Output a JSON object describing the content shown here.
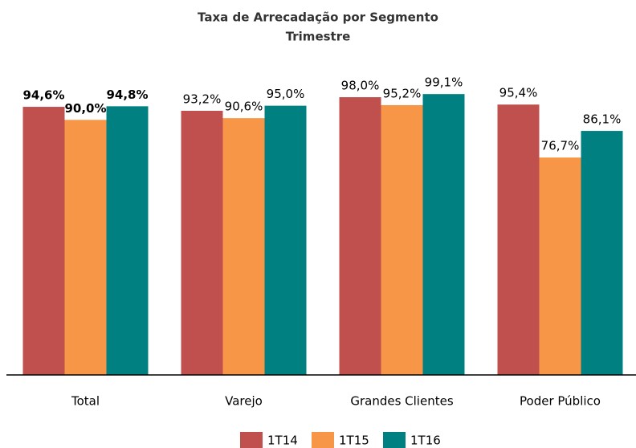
{
  "chart_data": {
    "type": "bar",
    "title": "Taxa de Arrecadação por Segmento",
    "subtitle": "Trimestre",
    "categories": [
      "Total",
      "Varejo",
      "Grandes Clientes",
      "Poder Público"
    ],
    "series": [
      {
        "name": "1T14",
        "color": "#c0504d",
        "values": [
          94.6,
          93.2,
          98.0,
          95.4
        ],
        "value_labels": [
          "94,6%",
          "93,2%",
          "98,0%",
          "95,4%"
        ]
      },
      {
        "name": "1T15",
        "color": "#f79646",
        "values": [
          90.0,
          90.6,
          95.2,
          76.7
        ],
        "value_labels": [
          "90,0%",
          "90,6%",
          "95,2%",
          "76,7%"
        ]
      },
      {
        "name": "1T16",
        "color": "#008080",
        "values": [
          94.8,
          95.0,
          99.1,
          86.1
        ],
        "value_labels": [
          "94,8%",
          "95,0%",
          "99,1%",
          "86,1%"
        ]
      }
    ],
    "bold_label_categories": [
      true,
      false,
      false,
      false
    ],
    "ylim": [
      0,
      100
    ],
    "legend": "bottom"
  }
}
